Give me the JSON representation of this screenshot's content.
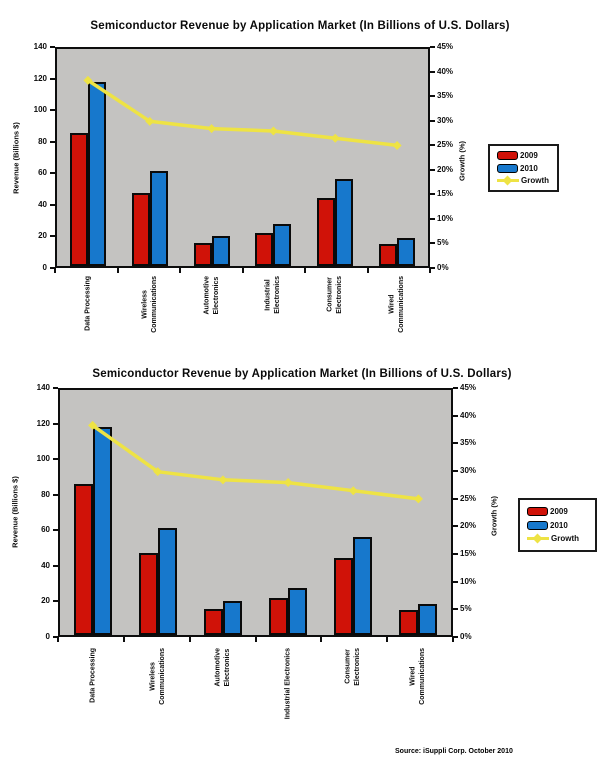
{
  "page": {
    "background": "#ffffff",
    "source_note": "Source: iSuppli Corp. October 2010"
  },
  "colors": {
    "bar_2009": "#d01208",
    "bar_2010": "#1778cc",
    "growth_line": "#eee344",
    "plot_background": "#c4c3c1",
    "axis": "#0d0d0d",
    "legend_background": "#ffffff",
    "text": "#0a0a0a"
  },
  "chart_data": [
    {
      "type": "bar",
      "subtype": "clustered-bar-with-line",
      "title": "Semiconductor Revenue by Application Market (In Billions of U.S. Dollars)",
      "categories": [
        "Data Processing",
        "Wireless Communications",
        "Automotive Electronics",
        "Industrial Electronics",
        "Consumer Electronics",
        "Wired Communications"
      ],
      "category_label_lines": [
        "Data Processing",
        "Wireless\nCommunications",
        "Automotive\nElectronics",
        "Industrial\nElectronics",
        "Consumer\nElectronics",
        "Wired\nCommunications"
      ],
      "series": [
        {
          "name": "2009",
          "type": "bar",
          "color": "#d01208",
          "axis": "left",
          "values": [
            86,
            47,
            15,
            21,
            44,
            14
          ]
        },
        {
          "name": "2010",
          "type": "bar",
          "color": "#1778cc",
          "axis": "left",
          "values": [
            119,
            61,
            19.5,
            27,
            56,
            18
          ]
        },
        {
          "name": "Growth",
          "type": "line",
          "color": "#eee344",
          "axis": "right",
          "marker": "diamond",
          "values": [
            38.5,
            30,
            28.5,
            28,
            26.5,
            25
          ]
        }
      ],
      "left_axis": {
        "label": "Revenue (Billions $)",
        "min": 0,
        "max": 140,
        "step": 20,
        "suffix": ""
      },
      "right_axis": {
        "label": "Growth (%)",
        "min": 0,
        "max": 45,
        "step": 5,
        "suffix": "%"
      },
      "legend": {
        "position": "right",
        "entries": [
          "2009",
          "2010",
          "Growth"
        ]
      },
      "grid": false,
      "plot_background": "#c4c3c1"
    },
    {
      "type": "bar",
      "subtype": "clustered-bar-with-line",
      "title": "Semiconductor Revenue by Application Market (In Billions of U.S. Dollars)",
      "categories": [
        "Data Processing",
        "Wireless Communications",
        "Automotive Electronics",
        "Industrial Electronics",
        "Consumer Electronics",
        "Wired Communications"
      ],
      "category_label_lines": [
        "Data Processing",
        "Wireless\nCommunications",
        "Automotive\nElectronics",
        "Industrial Electronics",
        "Consumer\nElectronics",
        "Wired\nCommunications"
      ],
      "series": [
        {
          "name": "2009",
          "type": "bar",
          "color": "#d01208",
          "axis": "left",
          "values": [
            86,
            47,
            15,
            21,
            44,
            14
          ]
        },
        {
          "name": "2010",
          "type": "bar",
          "color": "#1778cc",
          "axis": "left",
          "values": [
            119,
            61,
            19.5,
            27,
            56,
            18
          ]
        },
        {
          "name": "Growth",
          "type": "line",
          "color": "#eee344",
          "axis": "right",
          "marker": "diamond",
          "values": [
            38.5,
            30,
            28.5,
            28,
            26.5,
            25
          ]
        }
      ],
      "left_axis": {
        "label": "Revenue (Billions $)",
        "min": 0,
        "max": 140,
        "step": 20,
        "suffix": ""
      },
      "right_axis": {
        "label": "Growth (%)",
        "min": 0,
        "max": 45,
        "step": 5,
        "suffix": "%"
      },
      "legend": {
        "position": "right",
        "entries": [
          "2009",
          "2010",
          "Growth"
        ]
      },
      "grid": false,
      "plot_background": "#c4c3c1"
    }
  ]
}
